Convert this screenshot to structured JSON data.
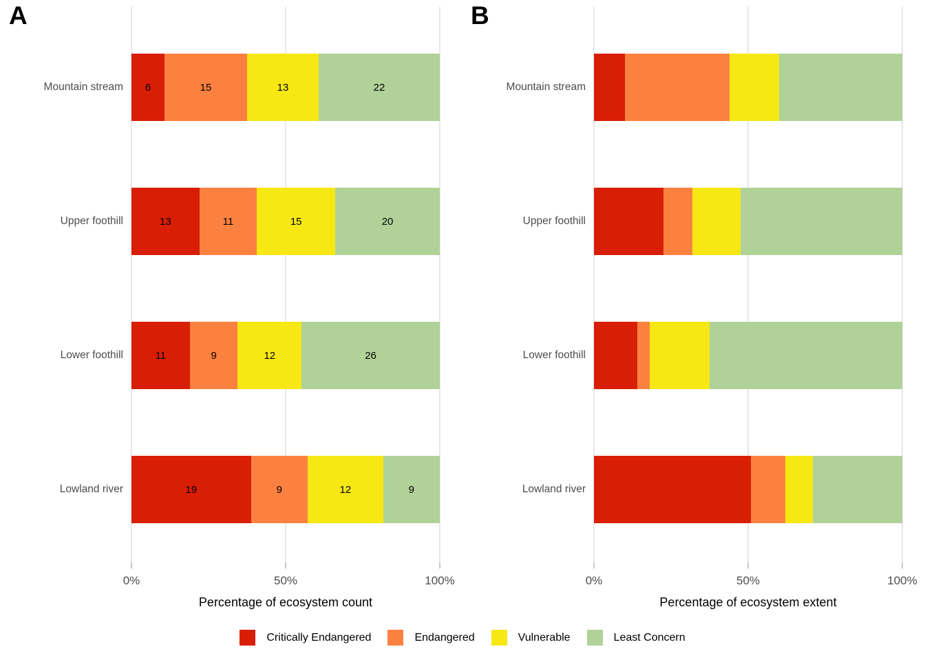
{
  "chart_data": [
    {
      "type": "bar",
      "orientation": "horizontal",
      "stacked": true,
      "tag": "A",
      "xlabel": "Percentage of ecosystem count",
      "x_ticks": [
        "0%",
        "50%",
        "100%"
      ],
      "x_range": [
        0,
        100
      ],
      "grid": "vertical-at-ticks",
      "legend_position": "bottom-shared",
      "series_names": [
        "Critically Endangered",
        "Endangered",
        "Vulnerable",
        "Least Concern"
      ],
      "value_type": "count",
      "show_value_labels": true,
      "categories": [
        "Mountain stream",
        "Upper foothill",
        "Lower foothill",
        "Lowland river"
      ],
      "rows": [
        {
          "category": "Mountain stream",
          "values": [
            6,
            15,
            13,
            22
          ]
        },
        {
          "category": "Upper foothill",
          "values": [
            13,
            11,
            15,
            20
          ]
        },
        {
          "category": "Lower foothill",
          "values": [
            11,
            9,
            12,
            26
          ]
        },
        {
          "category": "Lowland river",
          "values": [
            19,
            9,
            12,
            9
          ]
        }
      ]
    },
    {
      "type": "bar",
      "orientation": "horizontal",
      "stacked": true,
      "tag": "B",
      "xlabel": "Percentage of ecosystem extent",
      "x_ticks": [
        "0%",
        "50%",
        "100%"
      ],
      "x_range": [
        0,
        100
      ],
      "grid": "vertical-at-ticks",
      "legend_position": "bottom-shared",
      "series_names": [
        "Critically Endangered",
        "Endangered",
        "Vulnerable",
        "Least Concern"
      ],
      "value_type": "percent",
      "show_value_labels": false,
      "categories": [
        "Mountain stream",
        "Upper foothill",
        "Lower foothill",
        "Lowland river"
      ],
      "rows": [
        {
          "category": "Mountain stream",
          "values": [
            10,
            34,
            16,
            40
          ]
        },
        {
          "category": "Upper foothill",
          "values": [
            22.5,
            9.5,
            15.5,
            52.5
          ]
        },
        {
          "category": "Lower foothill",
          "values": [
            14,
            4,
            19.5,
            62.5
          ]
        },
        {
          "category": "Lowland river",
          "values": [
            51,
            11,
            9,
            29
          ]
        }
      ]
    }
  ],
  "legend": {
    "items": [
      {
        "label": "Critically Endangered",
        "color": "#d81e05"
      },
      {
        "label": "Endangered",
        "color": "#fb8140"
      },
      {
        "label": "Vulnerable",
        "color": "#f7e814"
      },
      {
        "label": "Least Concern",
        "color": "#b0d298"
      }
    ]
  },
  "style_colors": {
    "gridline": "#e8e8e8",
    "axis_tick": "#c9c9c9",
    "axis_text": "#4d4d4d",
    "label_text": "#000000",
    "background": "#ffffff"
  }
}
